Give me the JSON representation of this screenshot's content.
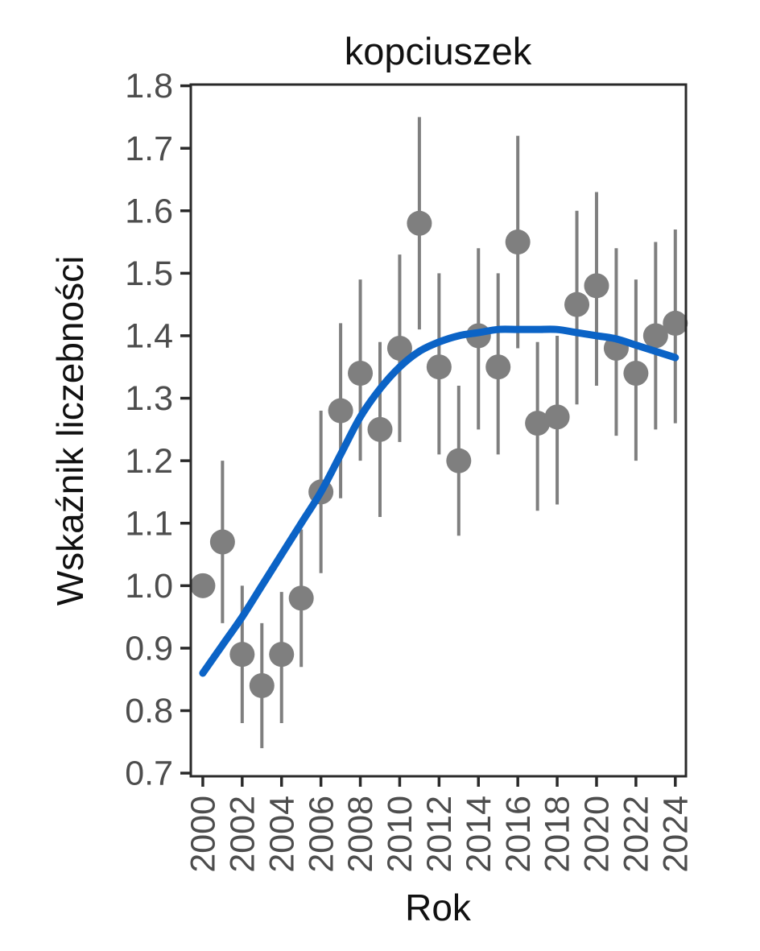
{
  "page": {
    "background": "#ffffff"
  },
  "chart_data": {
    "type": "scatter",
    "title": "kopciuszek",
    "xlabel": "Rok",
    "ylabel": "Wskaźnik liczebności",
    "x": [
      2000,
      2001,
      2002,
      2003,
      2004,
      2005,
      2006,
      2007,
      2008,
      2009,
      2010,
      2011,
      2012,
      2013,
      2014,
      2015,
      2016,
      2017,
      2018,
      2019,
      2020,
      2021,
      2022,
      2023,
      2024
    ],
    "series": [
      {
        "name": "index",
        "type": "points_with_error_bars",
        "values": [
          1.0,
          1.07,
          0.89,
          0.84,
          0.89,
          0.98,
          1.15,
          1.28,
          1.34,
          1.25,
          1.38,
          1.58,
          1.35,
          1.2,
          1.4,
          1.35,
          1.55,
          1.26,
          1.27,
          1.45,
          1.48,
          1.38,
          1.34,
          1.4,
          1.42
        ],
        "ci_low": [
          null,
          0.94,
          0.78,
          0.74,
          0.78,
          0.87,
          1.02,
          1.14,
          1.2,
          1.11,
          1.23,
          1.41,
          1.21,
          1.08,
          1.25,
          1.21,
          1.38,
          1.12,
          1.13,
          1.29,
          1.32,
          1.24,
          1.2,
          1.25,
          1.26
        ],
        "ci_high": [
          null,
          1.2,
          1.0,
          0.94,
          0.99,
          1.09,
          1.28,
          1.42,
          1.49,
          1.39,
          1.53,
          1.75,
          1.5,
          1.32,
          1.54,
          1.5,
          1.72,
          1.39,
          1.4,
          1.6,
          1.63,
          1.54,
          1.49,
          1.55,
          1.57
        ]
      },
      {
        "name": "trend",
        "type": "smooth_line",
        "values": [
          0.86,
          0.905,
          0.95,
          1.0,
          1.05,
          1.1,
          1.15,
          1.21,
          1.27,
          1.315,
          1.35,
          1.375,
          1.39,
          1.4,
          1.405,
          1.41,
          1.41,
          1.41,
          1.41,
          1.405,
          1.4,
          1.395,
          1.385,
          1.375,
          1.365
        ]
      }
    ],
    "x_ticks": [
      2000,
      2002,
      2004,
      2006,
      2008,
      2010,
      2012,
      2014,
      2016,
      2018,
      2020,
      2022,
      2024
    ],
    "y_ticks": [
      0.7,
      0.8,
      0.9,
      1.0,
      1.1,
      1.2,
      1.3,
      1.4,
      1.5,
      1.6,
      1.7,
      1.8
    ],
    "xlim": [
      1999.39,
      2024.54
    ],
    "ylim": [
      0.695,
      1.802
    ],
    "x_tick_rotation": 90,
    "grid": false,
    "legend_position": "none"
  },
  "colors": {
    "point": "#7f7f7f",
    "error_bar": "#7f7f7f",
    "trend_line": "#0b63c6",
    "tick_label": "#4d4d4d",
    "axis_title": "#111111",
    "panel_border": "#2a2a2a",
    "background": "#ffffff"
  }
}
